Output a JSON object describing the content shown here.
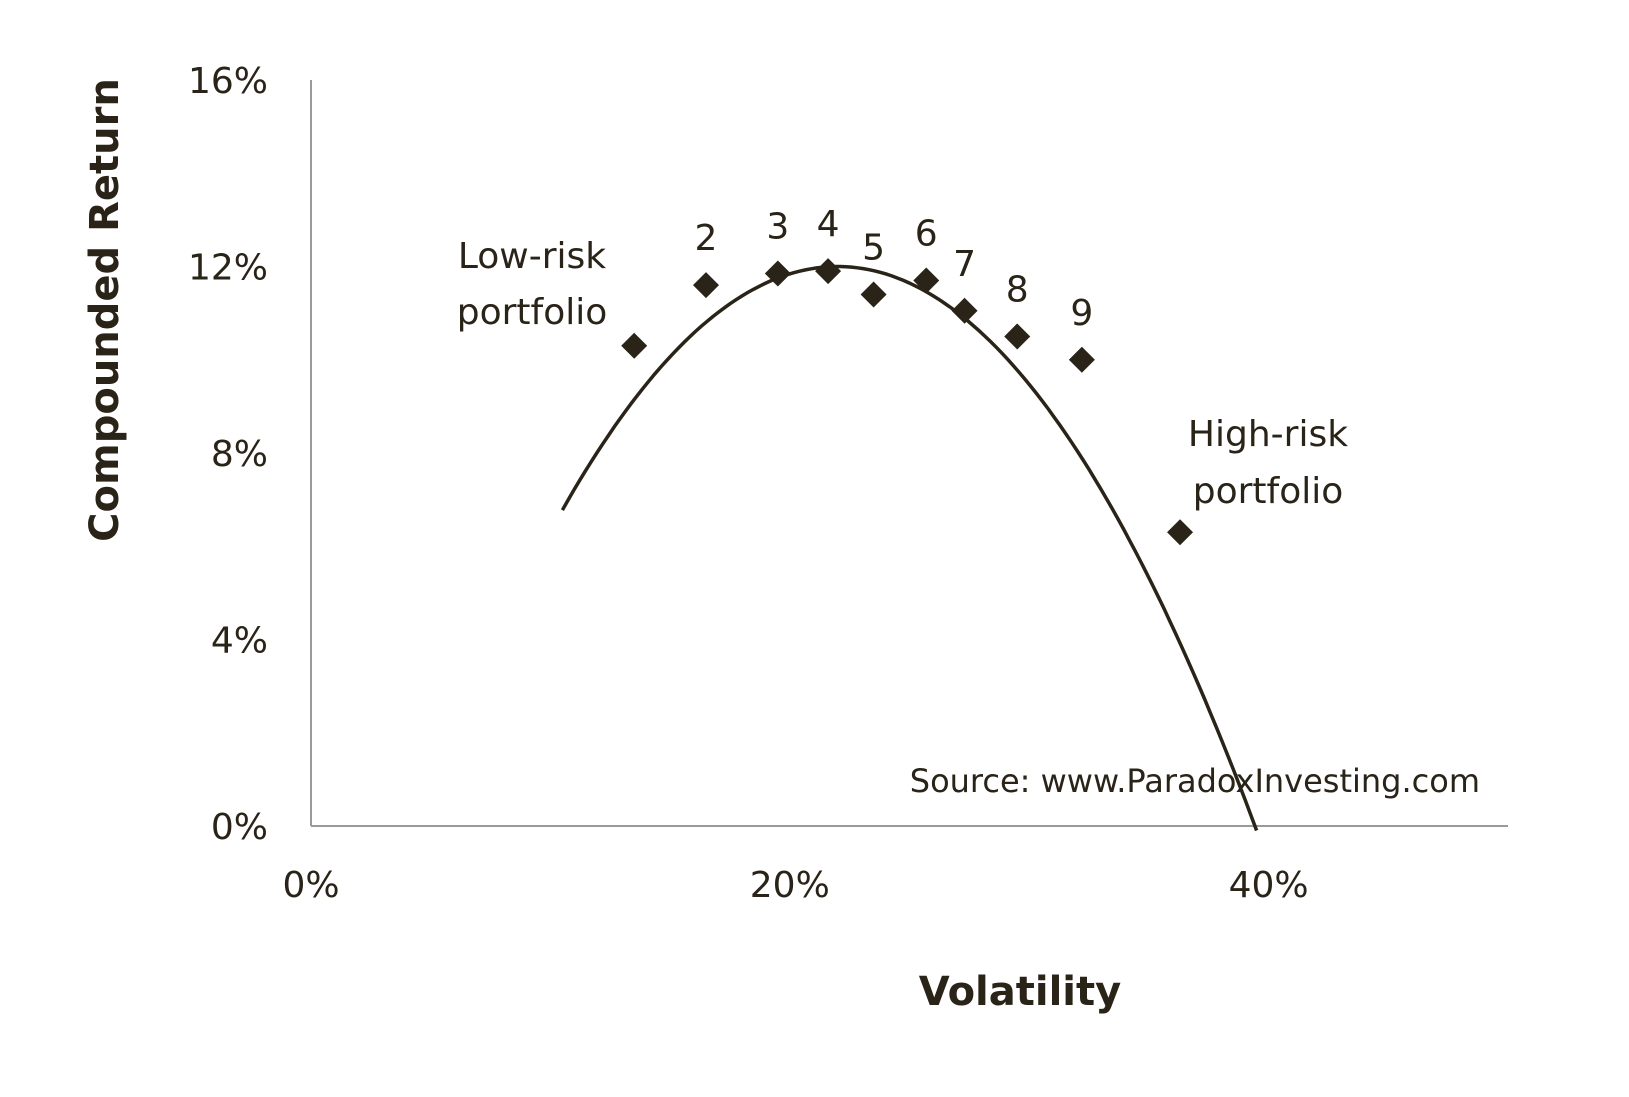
{
  "colors": {
    "ink": "#2a2318",
    "axis": "#9a9a9a",
    "background": "#ffffff"
  },
  "chart_data": {
    "type": "scatter",
    "title": "",
    "xlabel": "Volatility",
    "ylabel": "Compounded Return",
    "xlim": [
      0,
      50
    ],
    "ylim": [
      0,
      16
    ],
    "x_ticks": [
      {
        "value": 0,
        "label": "0%"
      },
      {
        "value": 20,
        "label": "20%"
      },
      {
        "value": 40,
        "label": "40%"
      }
    ],
    "y_ticks": [
      {
        "value": 0,
        "label": "0%"
      },
      {
        "value": 4,
        "label": "4%"
      },
      {
        "value": 8,
        "label": "8%"
      },
      {
        "value": 12,
        "label": "12%"
      },
      {
        "value": 16,
        "label": "16%"
      }
    ],
    "grid": false,
    "legend": "none",
    "points": [
      {
        "label": "",
        "x": 13.5,
        "y": 10.3
      },
      {
        "label": "2",
        "x": 16.5,
        "y": 11.6
      },
      {
        "label": "3",
        "x": 19.5,
        "y": 11.85
      },
      {
        "label": "4",
        "x": 21.6,
        "y": 11.9
      },
      {
        "label": "5",
        "x": 23.5,
        "y": 11.4
      },
      {
        "label": "6",
        "x": 25.7,
        "y": 11.7
      },
      {
        "label": "7",
        "x": 27.3,
        "y": 11.05
      },
      {
        "label": "8",
        "x": 29.5,
        "y": 10.5
      },
      {
        "label": "9",
        "x": 32.2,
        "y": 10.0
      },
      {
        "label": "",
        "x": 36.3,
        "y": 6.3
      }
    ],
    "trend": {
      "type": "quadratic",
      "x_range": [
        10.5,
        39.5
      ],
      "vertex_x": 22,
      "vertex_y": 12.0,
      "a": -0.0395
    },
    "annotations": [
      {
        "text_lines": [
          "Low-risk",
          "portfolio"
        ]
      },
      {
        "text_lines": [
          "High-risk",
          "portfolio"
        ]
      }
    ],
    "source_note": "Source: www.ParadoxInvesting.com"
  }
}
